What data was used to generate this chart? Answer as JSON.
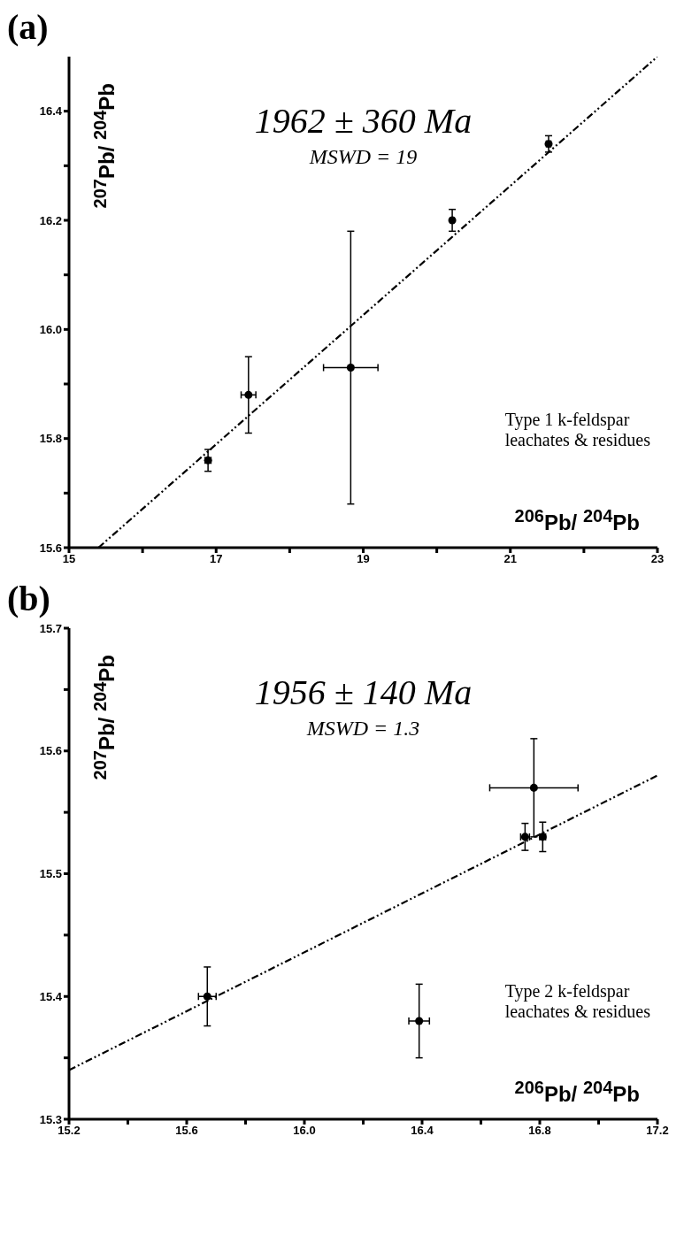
{
  "chart_data": [
    {
      "type": "scatter",
      "title": "(a)",
      "xlabel": "$^{206}$Pb/ $^{204}$Pb",
      "ylabel": "$^{207}$Pb/ $^{204}$Pb",
      "annotations": [
        "1962 ± 360 Ma",
        "MSWD = 19",
        "Type 1 k-feldspar\nleachates & residues"
      ],
      "xlim": [
        15,
        23
      ],
      "ylim": [
        15.6,
        16.5
      ],
      "xticks": [
        15,
        {
          "value": 16,
          "label": null
        },
        17,
        {
          "value": 18,
          "label": null
        },
        19,
        {
          "value": 20,
          "label": null
        },
        21,
        {
          "value": 22,
          "label": null
        },
        23
      ],
      "yticks": [
        15.6,
        {
          "value": 15.7,
          "label": null
        },
        15.8,
        {
          "value": 15.9,
          "label": null
        },
        {
          "value": 16,
          "label": "16.0"
        },
        {
          "value": 16.1,
          "label": null
        },
        16.2,
        {
          "value": 16.3,
          "label": null
        },
        16.4
      ],
      "series": [
        {
          "type": "line",
          "color": "#000000",
          "line_style": "dashed",
          "x": [
            15.4,
            23
          ],
          "values": [
            15.6,
            16.5
          ]
        },
        {
          "marker": "circle",
          "color": "#000000",
          "x": [
            16.89,
            17.44,
            18.83,
            20.21,
            21.52
          ],
          "values": [
            15.76,
            15.88,
            15.93,
            16.2,
            16.34
          ],
          "errors": [
            0.02,
            0.07,
            0.25,
            0.02,
            0.015
          ],
          "xerrors": [
            0.04,
            0.1,
            0.37,
            0.02,
            0.03
          ]
        }
      ]
    },
    {
      "type": "scatter",
      "title": "(b)",
      "xlabel": "$^{206}$Pb/ $^{204}$Pb",
      "ylabel": "$^{207}$Pb/ $^{204}$Pb",
      "annotations": [
        "1956 ± 140 Ma",
        "MSWD = 1.3",
        "Type 2 k-feldspar\nleachates & residues"
      ],
      "xlim": [
        15.2,
        17.2
      ],
      "ylim": [
        15.3,
        15.7
      ],
      "xticks": [
        15.2,
        {
          "value": 15.4,
          "label": null
        },
        15.6,
        {
          "value": 15.8,
          "label": null
        },
        {
          "value": 16,
          "label": "16.0"
        },
        {
          "value": 16.2,
          "label": null
        },
        16.4,
        {
          "value": 16.6,
          "label": null
        },
        16.8,
        {
          "value": 17,
          "label": null
        },
        17.2
      ],
      "yticks": [
        15.3,
        {
          "value": 15.35,
          "label": null
        },
        15.4,
        {
          "value": 15.45,
          "label": null
        },
        15.5,
        {
          "value": 15.55,
          "label": null
        },
        15.6,
        {
          "value": 15.65,
          "label": null
        },
        15.7
      ],
      "series": [
        {
          "type": "line",
          "color": "#000000",
          "line_style": "dashed",
          "x": [
            15.2,
            17.2
          ],
          "values": [
            15.34,
            15.58
          ]
        },
        {
          "marker": "circle",
          "color": "#000000",
          "x": [
            15.67,
            16.39,
            16.78,
            16.75,
            16.81
          ],
          "values": [
            15.4,
            15.38,
            15.57,
            15.53,
            15.53
          ],
          "errors": [
            0.024,
            0.03,
            0.04,
            0.011,
            0.012
          ],
          "xerrors": [
            0.03,
            0.035,
            0.15,
            0.015,
            0.01
          ]
        }
      ]
    }
  ]
}
